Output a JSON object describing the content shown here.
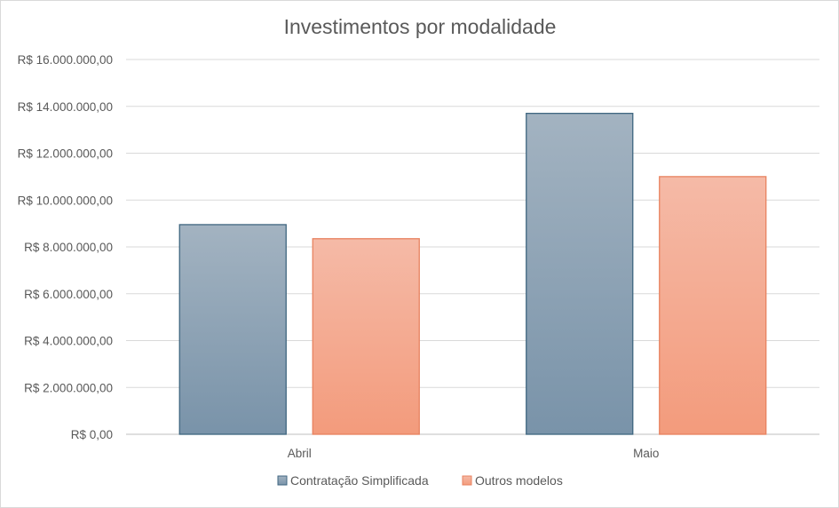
{
  "chart_data": {
    "type": "bar",
    "title": "Investimentos por modalidade",
    "categories": [
      "Abril",
      "Maio"
    ],
    "series": [
      {
        "name": "Contratação Simplificada",
        "values": [
          8950000,
          13700000
        ],
        "color_top": "#a3b3c1",
        "color_bottom": "#7993a9",
        "stroke": "#3f6680"
      },
      {
        "name": "Outros modelos",
        "values": [
          8350000,
          11000000
        ],
        "color_top": "#f5baa7",
        "color_bottom": "#f39b7c",
        "stroke": "#e8825f"
      }
    ],
    "ylim": [
      0,
      16000000
    ],
    "ytick_values": [
      0,
      2000000,
      4000000,
      6000000,
      8000000,
      10000000,
      12000000,
      14000000,
      16000000
    ],
    "ytick_labels": [
      "R$ 0,00",
      "R$ 2.000.000,00",
      "R$ 4.000.000,00",
      "R$ 6.000.000,00",
      "R$ 8.000.000,00",
      "R$ 10.000.000,00",
      "R$ 12.000.000,00",
      "R$ 14.000.000,00",
      "R$ 16.000.000,00"
    ],
    "grid": true,
    "legend_position": "bottom"
  }
}
